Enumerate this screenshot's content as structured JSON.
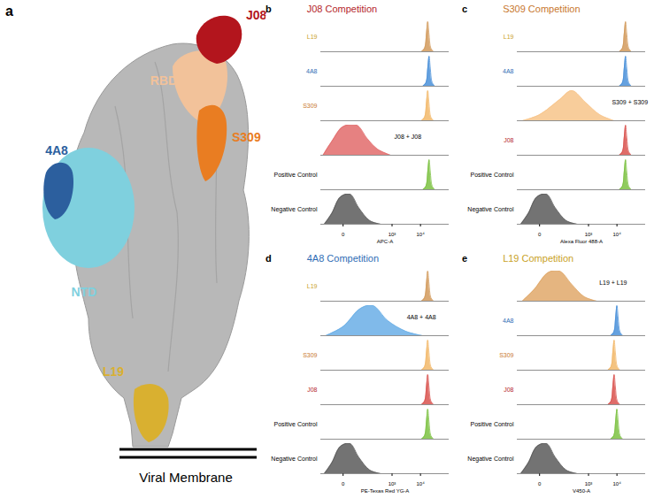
{
  "diagram": {
    "panel_label": "a",
    "labels": [
      {
        "text": "J08",
        "color": "#b3151d"
      },
      {
        "text": "RBD",
        "color": "#f2c29a"
      },
      {
        "text": "S309",
        "color": "#e97d22"
      },
      {
        "text": "4A8",
        "color": "#2c5f9e"
      },
      {
        "text": "NTD",
        "color": "#7fd0de"
      },
      {
        "text": "L19",
        "color": "#d9b030"
      }
    ],
    "membrane_label": "Viral Membrane"
  },
  "chart_data": [
    {
      "type": "area",
      "panel_label": "b",
      "title": "J08 Competition",
      "color": "#b5262b",
      "xlabel": "APC-A",
      "log": "x",
      "xlim": [
        -100,
        100000
      ],
      "xticks": [
        0,
        {
          "value": 1000,
          "label": "10³"
        },
        {
          "value": 10000,
          "label": "10⁴"
        }
      ],
      "ylim": [
        0,
        100
      ],
      "tick_labels": "x",
      "series": [
        {
          "name": "L19",
          "color": "#d29a5c",
          "x": [
            10800,
            14000,
            16200,
            18000,
            19800,
            23000,
            28800
          ],
          "values": [
            0,
            12,
            60,
            100,
            60,
            12,
            0
          ]
        },
        {
          "name": "4A8",
          "color": "#4a90d9",
          "x": [
            12000,
            15600,
            18000,
            20000,
            22000,
            25600,
            32000
          ],
          "values": [
            0,
            12,
            60,
            100,
            60,
            12,
            0
          ]
        },
        {
          "name": "S309",
          "color": "#f2b86a",
          "x": [
            10800,
            14000,
            16200,
            18000,
            19800,
            23000,
            28800
          ],
          "values": [
            0,
            12,
            60,
            100,
            60,
            12,
            0
          ]
        },
        {
          "name": null,
          "color": "#e26b6b",
          "x": [
            -80,
            -30,
            0,
            40,
            120,
            300,
            900
          ],
          "values": [
            0,
            45,
            95,
            100,
            55,
            20,
            0
          ]
        },
        {
          "name": "Positive Control",
          "color": "#7cc242",
          "x": [
            12000,
            15600,
            18000,
            20000,
            22000,
            25600,
            32000
          ],
          "values": [
            0,
            12,
            60,
            100,
            60,
            12,
            0
          ]
        },
        {
          "name": "Negative Control",
          "color": "#5a5a5a",
          "x": [
            -70,
            -30,
            -5,
            15,
            50,
            150,
            400
          ],
          "values": [
            0,
            35,
            90,
            100,
            55,
            12,
            0
          ]
        }
      ],
      "annotations": [
        {
          "text": "J08 + J08",
          "series": 3,
          "x": 900,
          "y": 60
        }
      ]
    },
    {
      "type": "area",
      "panel_label": "c",
      "title": "S309 Competition",
      "color": "#c8772e",
      "xlabel": "Alexa Fluor 488-A",
      "log": "x",
      "xlim": [
        -100,
        100000
      ],
      "xticks": [
        0,
        {
          "value": 1000,
          "label": "10³"
        },
        {
          "value": 10000,
          "label": "10⁴"
        }
      ],
      "ylim": [
        0,
        100
      ],
      "tick_labels": "x",
      "series": [
        {
          "name": "L19",
          "color": "#d29a5c",
          "x": [
            12000,
            15600,
            18000,
            20000,
            22000,
            25600,
            32000
          ],
          "values": [
            0,
            12,
            60,
            100,
            60,
            12,
            0
          ]
        },
        {
          "name": "4A8",
          "color": "#4a90d9",
          "x": [
            12000,
            15600,
            18000,
            20000,
            22000,
            25600,
            32000
          ],
          "values": [
            0,
            12,
            60,
            100,
            60,
            12,
            0
          ]
        },
        {
          "name": null,
          "color": "#f7c48a",
          "x": [
            -60,
            0,
            80,
            250,
            800,
            2500,
            8000
          ],
          "values": [
            0,
            20,
            70,
            100,
            60,
            20,
            0
          ]
        },
        {
          "name": "J08",
          "color": "#d9534f",
          "x": [
            12000,
            15600,
            18000,
            20000,
            22000,
            25600,
            32000
          ],
          "values": [
            0,
            12,
            60,
            100,
            60,
            12,
            0
          ]
        },
        {
          "name": "Positive Control",
          "color": "#7cc242",
          "x": [
            12000,
            15600,
            18000,
            20000,
            22000,
            25600,
            32000
          ],
          "values": [
            0,
            12,
            60,
            100,
            60,
            12,
            0
          ]
        },
        {
          "name": "Negative Control",
          "color": "#5a5a5a",
          "x": [
            -70,
            -30,
            -5,
            15,
            50,
            150,
            400
          ],
          "values": [
            0,
            35,
            90,
            100,
            55,
            12,
            0
          ]
        }
      ],
      "annotations": [
        {
          "text": "S309 + S309",
          "series": 2,
          "x": 5000,
          "y": 60
        }
      ]
    },
    {
      "type": "area",
      "panel_label": "d",
      "title": "4A8 Competition",
      "color": "#2f6db5",
      "xlabel": "PE-Texas Red YG-A",
      "log": "x",
      "xlim": [
        -100,
        100000
      ],
      "xticks": [
        0,
        {
          "value": 1000,
          "label": "10³"
        },
        {
          "value": 10000,
          "label": "10⁴"
        }
      ],
      "ylim": [
        0,
        100
      ],
      "tick_labels": "x",
      "series": [
        {
          "name": "L19",
          "color": "#d29a5c",
          "x": [
            10800,
            14000,
            16200,
            18000,
            19800,
            23000,
            28800
          ],
          "values": [
            0,
            12,
            60,
            100,
            60,
            12,
            0
          ]
        },
        {
          "name": null,
          "color": "#6aaee6",
          "x": [
            -60,
            0,
            60,
            200,
            700,
            3000,
            12000
          ],
          "values": [
            0,
            30,
            90,
            100,
            50,
            15,
            0
          ]
        },
        {
          "name": "S309",
          "color": "#f2b86a",
          "x": [
            10800,
            14000,
            16200,
            18000,
            19800,
            23000,
            28800
          ],
          "values": [
            0,
            12,
            60,
            100,
            60,
            12,
            0
          ]
        },
        {
          "name": "J08",
          "color": "#d9534f",
          "x": [
            10800,
            14000,
            16200,
            18000,
            19800,
            23000,
            28800
          ],
          "values": [
            0,
            12,
            60,
            100,
            60,
            12,
            0
          ]
        },
        {
          "name": "Positive Control",
          "color": "#7cc242",
          "x": [
            10800,
            14000,
            16200,
            18000,
            19800,
            23000,
            28800
          ],
          "values": [
            0,
            12,
            60,
            100,
            60,
            12,
            0
          ]
        },
        {
          "name": "Negative Control",
          "color": "#5a5a5a",
          "x": [
            -70,
            -30,
            -5,
            15,
            50,
            150,
            400
          ],
          "values": [
            0,
            35,
            90,
            100,
            55,
            12,
            0
          ]
        }
      ],
      "annotations": [
        {
          "text": "4A8 + 4A8",
          "series": 1,
          "x": 2500,
          "y": 60
        }
      ]
    },
    {
      "type": "area",
      "panel_label": "e",
      "title": "L19 Competition",
      "color": "#c9a227",
      "xlabel": "V450-A",
      "log": "x",
      "xlim": [
        -100,
        100000
      ],
      "xticks": [
        0,
        {
          "value": 1000,
          "label": "10³"
        },
        {
          "value": 10000,
          "label": "10⁴"
        }
      ],
      "ylim": [
        0,
        100
      ],
      "tick_labels": "x",
      "series": [
        {
          "name": null,
          "color": "#e0a86a",
          "x": [
            -60,
            -10,
            20,
            80,
            250,
            700,
            2000
          ],
          "values": [
            0,
            40,
            95,
            100,
            55,
            15,
            0
          ]
        },
        {
          "name": "4A8",
          "color": "#4a90d9",
          "x": [
            6000,
            7800,
            9000,
            10000,
            11000,
            12800,
            16000
          ],
          "values": [
            0,
            12,
            60,
            100,
            60,
            12,
            0
          ]
        },
        {
          "name": "S309",
          "color": "#f2b86a",
          "x": [
            4800,
            6240,
            7200,
            8000,
            8800,
            10240,
            12800
          ],
          "values": [
            0,
            12,
            60,
            100,
            60,
            12,
            0
          ]
        },
        {
          "name": "J08",
          "color": "#d9534f",
          "x": [
            4800,
            6240,
            7200,
            8000,
            8800,
            10240,
            12800
          ],
          "values": [
            0,
            12,
            60,
            100,
            60,
            12,
            0
          ]
        },
        {
          "name": "Positive Control",
          "color": "#7cc242",
          "x": [
            6000,
            7800,
            9000,
            10000,
            11000,
            12800,
            16000
          ],
          "values": [
            0,
            12,
            60,
            100,
            60,
            12,
            0
          ]
        },
        {
          "name": "Negative Control",
          "color": "#5a5a5a",
          "x": [
            -70,
            -30,
            -5,
            15,
            50,
            150,
            400
          ],
          "values": [
            0,
            35,
            90,
            100,
            55,
            12,
            0
          ]
        }
      ],
      "annotations": [
        {
          "text": "L19 + L19",
          "series": 0,
          "x": 1800,
          "y": 60
        }
      ]
    }
  ]
}
